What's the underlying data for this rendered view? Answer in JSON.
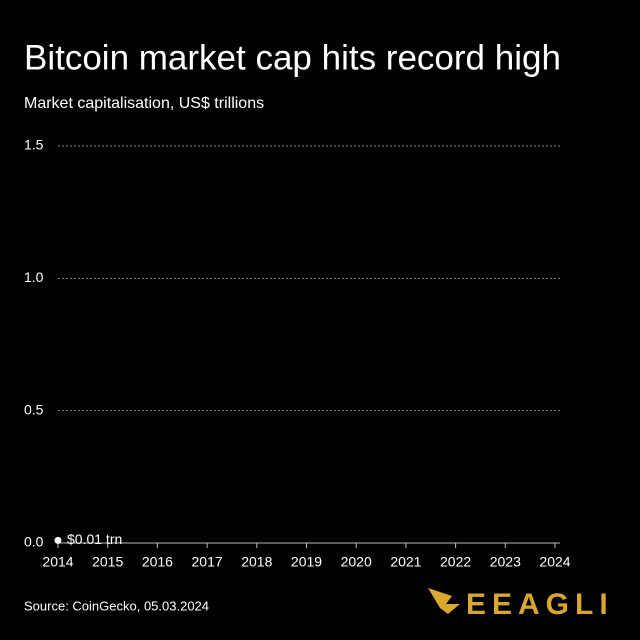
{
  "chart_data": {
    "type": "line",
    "title": "Bitcoin market cap hits record high",
    "subtitle": "Market capitalisation, US$ trillions",
    "source": "Source: CoinGecko, 05.03.2024",
    "brand": "EEAGLI",
    "x": [
      2014
    ],
    "series": [
      {
        "name": "Bitcoin",
        "color": "#ffffff",
        "values": [
          0.01
        ],
        "value_labels": [
          "$0.01 trn"
        ]
      }
    ],
    "xlim": [
      2014,
      2024
    ],
    "xticks": [
      2014,
      2015,
      2016,
      2017,
      2018,
      2019,
      2020,
      2021,
      2022,
      2023,
      2024
    ],
    "ylim": [
      0,
      1.5
    ],
    "yticks": [
      {
        "value": 0,
        "label": "0.0"
      },
      0.5,
      {
        "value": 1,
        "label": "1.0"
      },
      1.5
    ],
    "grid": true
  }
}
